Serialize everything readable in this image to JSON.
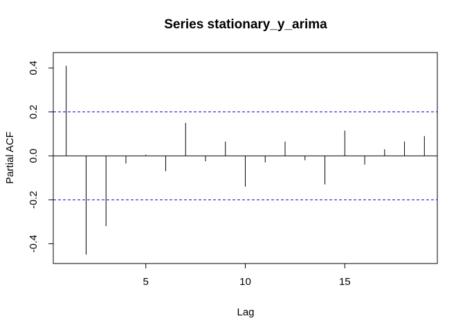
{
  "chart_data": {
    "type": "bar",
    "title": "Series  stationary_y_arima",
    "xlabel": "Lag",
    "ylabel": "Partial ACF",
    "xlim": [
      0.35,
      19.65
    ],
    "ylim": [
      -0.49,
      0.47
    ],
    "x_ticks": [
      5,
      10,
      15
    ],
    "y_ticks": [
      -0.4,
      -0.2,
      0.0,
      0.2,
      0.4
    ],
    "y_tick_labels": [
      "-0.4",
      "-0.2",
      "0.0",
      "0.2",
      "0.4"
    ],
    "confidence_bound": 0.2,
    "zero_line": true,
    "grid": false,
    "colors": {
      "bars": "#000000",
      "confidence": "#0000cc",
      "zero_line": "#000000"
    },
    "x": [
      1,
      2,
      3,
      4,
      5,
      6,
      7,
      8,
      9,
      10,
      11,
      12,
      13,
      14,
      15,
      16,
      17,
      18,
      19
    ],
    "values": [
      0.41,
      -0.45,
      -0.32,
      -0.035,
      0.005,
      -0.07,
      0.15,
      -0.025,
      0.065,
      -0.14,
      -0.03,
      0.065,
      -0.02,
      -0.13,
      0.115,
      -0.04,
      0.03,
      0.065,
      0.09
    ]
  }
}
